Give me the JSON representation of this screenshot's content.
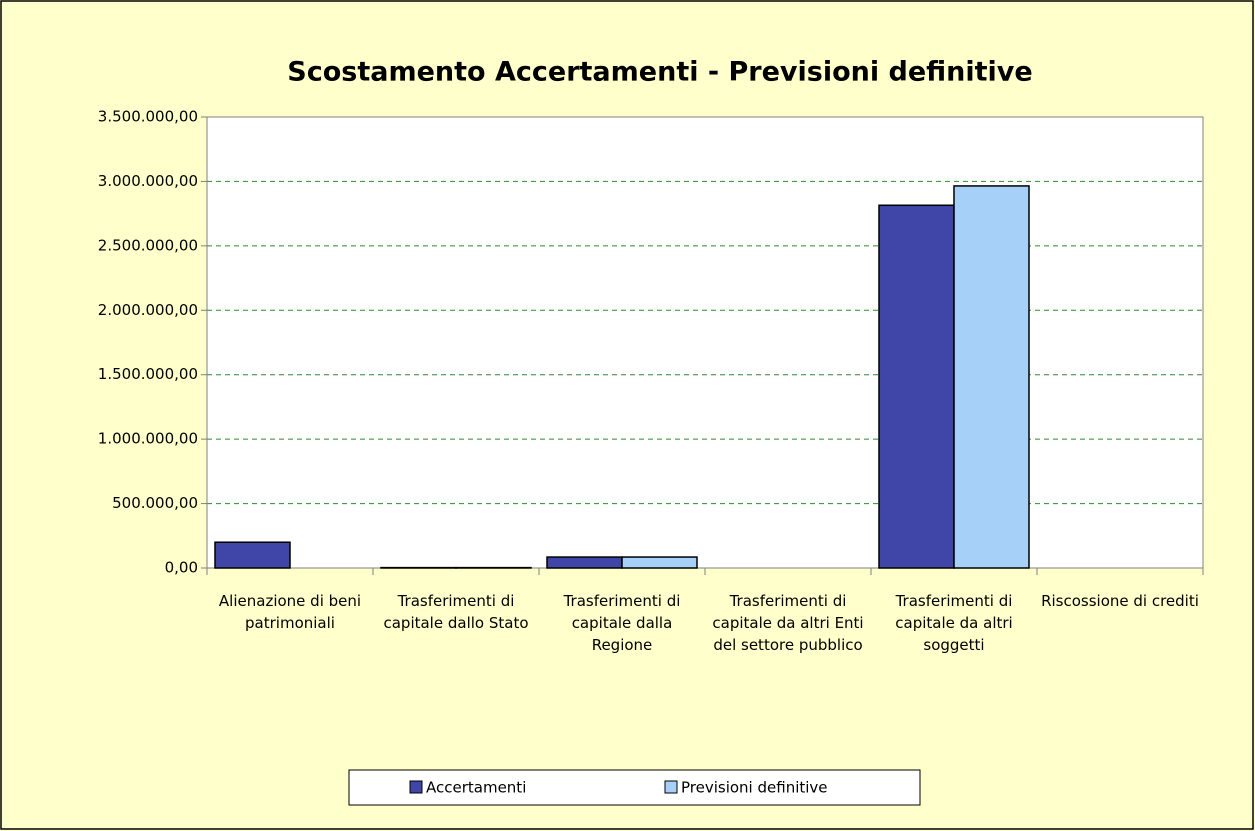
{
  "chart_data": {
    "type": "bar",
    "title": "Scostamento Accertamenti - Previsioni definitive",
    "categories": [
      "Alienazione di beni patrimoniali",
      "Trasferimenti di capitale dallo Stato",
      "Trasferimenti di capitale dalla Regione",
      "Trasferimenti di capitale da altri Enti del settore pubblico",
      "Trasferimenti di capitale da altri soggetti",
      "Riscossione di crediti"
    ],
    "series": [
      {
        "name": "Accertamenti",
        "color": "#3f46a8",
        "values": [
          200000,
          3000,
          85000,
          0,
          2815000,
          0
        ]
      },
      {
        "name": "Previsioni definitive",
        "color": "#a6d0f8",
        "values": [
          0,
          3000,
          85000,
          0,
          2965000,
          0
        ]
      }
    ],
    "ylim": [
      0,
      3500000
    ],
    "yticks": [
      {
        "value": 0,
        "label": "0,00"
      },
      {
        "value": 500000,
        "label": "500.000,00"
      },
      {
        "value": 1000000,
        "label": "1.000.000,00"
      },
      {
        "value": 1500000,
        "label": "1.500.000,00"
      },
      {
        "value": 2000000,
        "label": "2.000.000,00"
      },
      {
        "value": 2500000,
        "label": "2.500.000,00"
      },
      {
        "value": 3000000,
        "label": "3.000.000,00"
      },
      {
        "value": 3500000,
        "label": "3.500.000,00"
      }
    ],
    "grid": true,
    "legend": "bottom"
  }
}
